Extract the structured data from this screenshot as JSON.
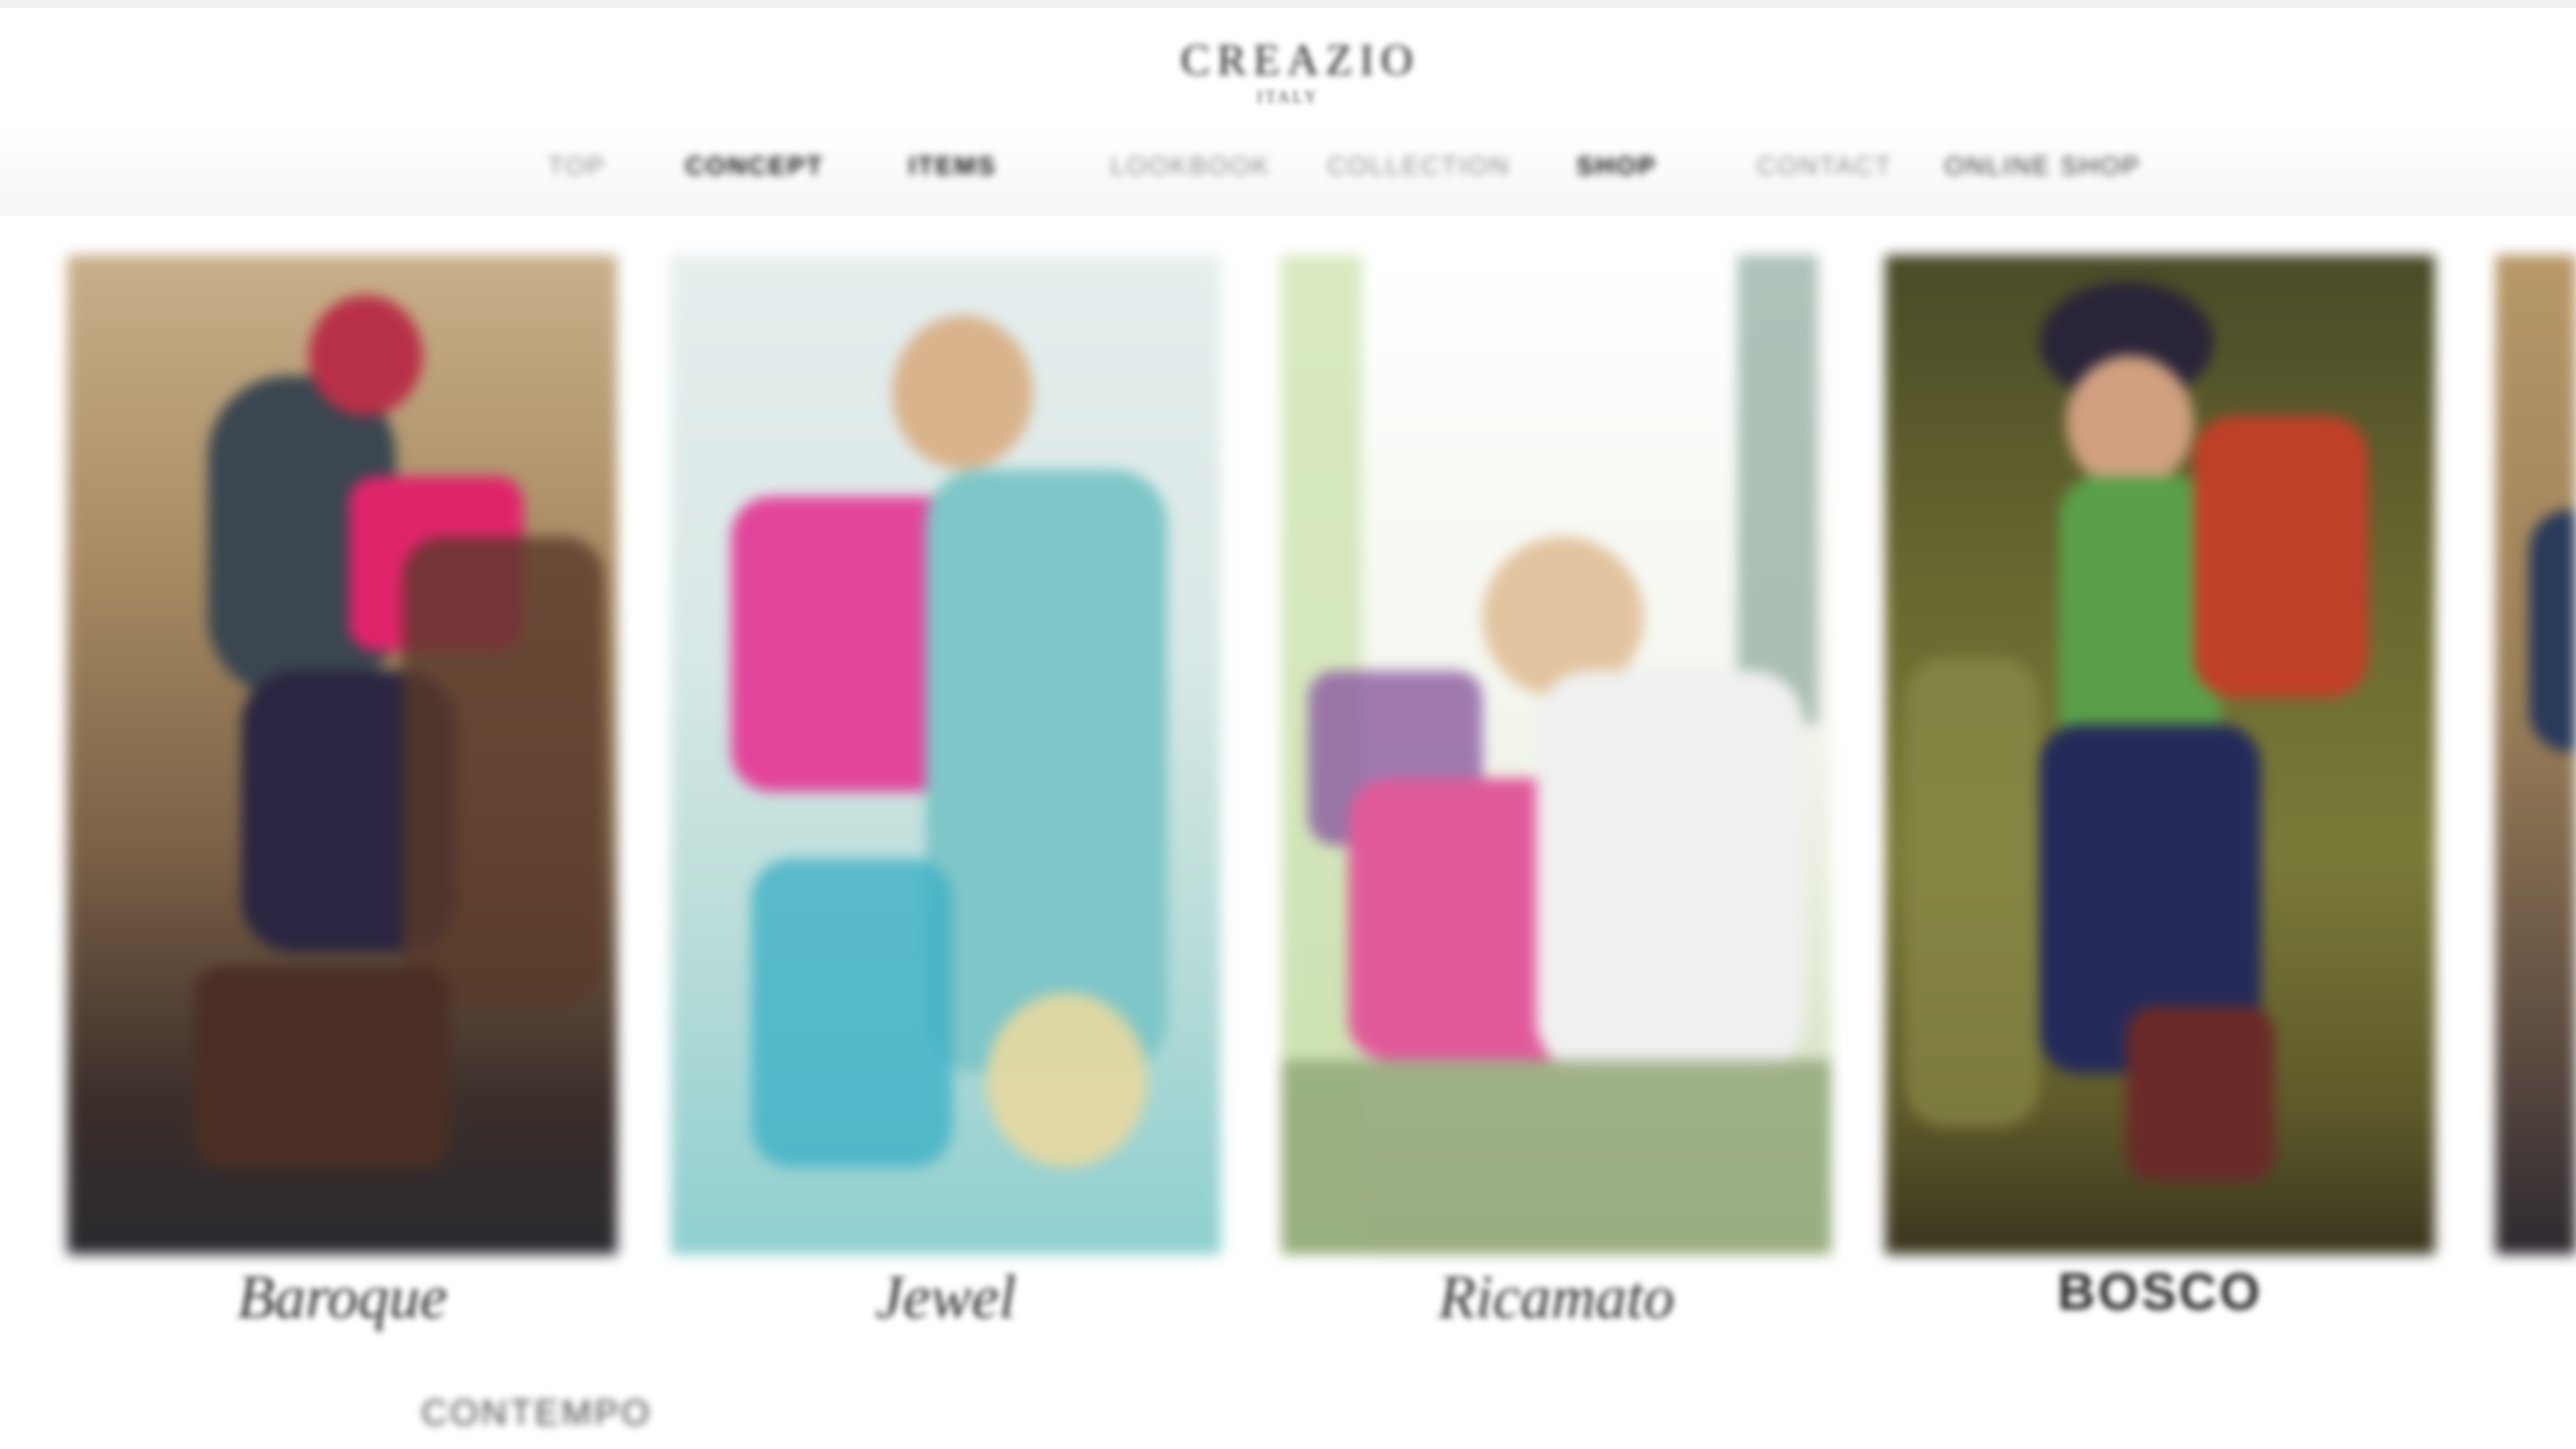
{
  "header": {
    "logo_main": "CREAZIO",
    "logo_sub": "ITALY"
  },
  "nav": {
    "items": [
      "TOP",
      "CONCEPT",
      "ITEMS",
      "LOOKBOOK",
      "COLLECTION",
      "SHOP",
      "CONTACT",
      "ONLINE SHOP"
    ]
  },
  "gallery": {
    "cards": [
      {
        "caption": "Baroque"
      },
      {
        "caption": "Jewel"
      },
      {
        "caption": "Ricamato"
      },
      {
        "caption": "BOSCO"
      }
    ],
    "partial_card": {
      "caption": ""
    },
    "below_first_caption": "CONTEMPO"
  },
  "colors": {
    "background": "#ffffff",
    "header_fade": "#f6f6f6",
    "text_dark": "#333333",
    "text_light": "#8a8a8a",
    "accent_pink": "#e0468a"
  }
}
